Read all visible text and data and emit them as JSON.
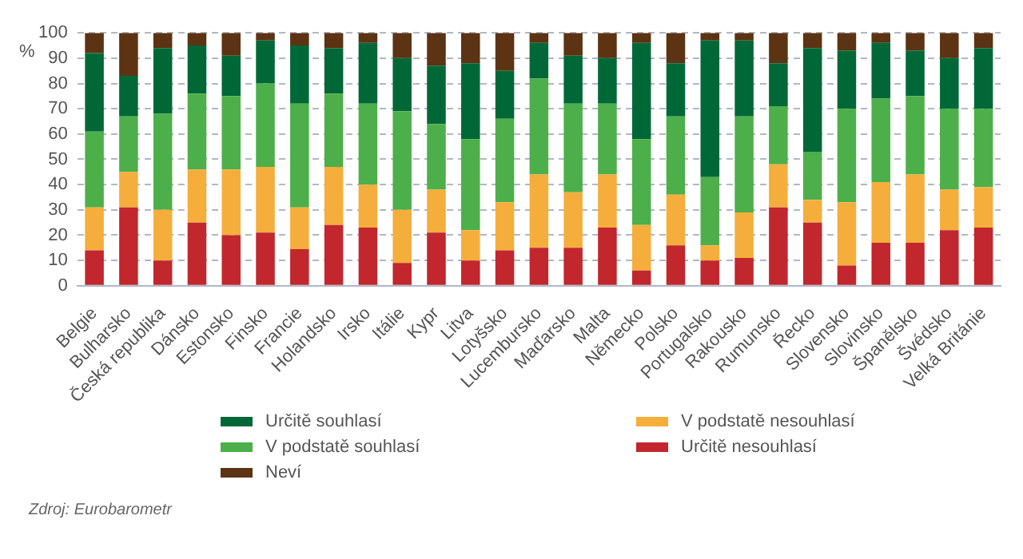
{
  "chart_data": {
    "type": "bar",
    "stacked": true,
    "ylabel": "%",
    "categories": [
      "Belgie",
      "Bulharsko",
      "Česká republika",
      "Dánsko",
      "Estonsko",
      "Finsko",
      "Francie",
      "Holandsko",
      "Irsko",
      "Itálie",
      "Kypr",
      "Litva",
      "Lotyšsko",
      "Lucembursko",
      "Maďarsko",
      "Malta",
      "Německo",
      "Polsko",
      "Portugalsko",
      "Rakousko",
      "Rumunsko",
      "Řecko",
      "Slovensko",
      "Slovinsko",
      "Španělsko",
      "Švédsko",
      "Velká Británie"
    ],
    "series": [
      {
        "name": "Určitě nesouhlasí",
        "color": "#c1272d",
        "values": [
          14,
          31,
          10,
          25,
          20,
          21,
          14.5,
          24,
          23,
          9,
          21,
          10,
          14,
          15,
          15,
          23,
          6,
          16,
          10,
          11,
          31,
          25,
          8,
          17,
          17,
          22,
          23
        ]
      },
      {
        "name": "V podstatě nesouhlasí",
        "color": "#f5ae3b",
        "values": [
          17,
          14,
          20,
          21,
          26,
          26,
          16.5,
          23,
          17,
          21,
          17,
          12,
          19,
          29,
          22,
          21,
          18,
          20,
          6,
          18,
          17,
          9,
          25,
          24,
          27,
          16,
          16
        ]
      },
      {
        "name": "V podstatě souhlasí",
        "color": "#4daf4a",
        "values": [
          30,
          22,
          38,
          30,
          29,
          33,
          41,
          29,
          32,
          39,
          26,
          36,
          33,
          38,
          35,
          28,
          34,
          31,
          27,
          38,
          23,
          19,
          37,
          33,
          31,
          32,
          31
        ]
      },
      {
        "name": "Určitě souhlasí",
        "color": "#006837",
        "values": [
          31,
          16,
          26,
          19,
          16,
          17,
          23,
          18,
          24,
          21,
          23,
          30,
          19,
          14,
          19,
          18,
          38,
          21,
          54,
          30,
          17,
          41,
          23,
          22,
          18,
          20,
          24
        ]
      },
      {
        "name": "Neví",
        "color": "#5c3313",
        "values": [
          8,
          17,
          6,
          5,
          9,
          3,
          5,
          6,
          4,
          10,
          13,
          12,
          15,
          4,
          9,
          10,
          4,
          12,
          3,
          3,
          12,
          6,
          7,
          4,
          7,
          10,
          6
        ]
      }
    ],
    "ylim": [
      0,
      100
    ],
    "yticks": [
      0,
      10,
      20,
      30,
      40,
      50,
      60,
      70,
      80,
      90,
      100
    ],
    "grid": "y",
    "legend": "bottom",
    "annotations": [
      "Zdroj: Eurobarometr"
    ]
  }
}
